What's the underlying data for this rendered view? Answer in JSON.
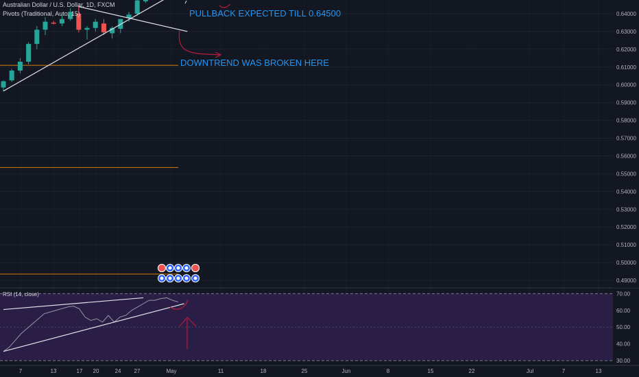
{
  "legend": {
    "symbol": "Australian Dollar / U.S. Dollar, 1D, FXCM",
    "indicator": "Pivots (Traditional, Auto, 15)"
  },
  "rsi_legend": "RSI (14, close)",
  "annotations": {
    "pullback": "PULLBACK EXPECTED TILL 0.64500",
    "downtrend": "DOWNTREND WAS BROKEN HERE"
  },
  "colors": {
    "background": "#131722",
    "up": "#26a69a",
    "down": "#ef5350",
    "annotation": "#2196f3",
    "pivot_line": "#ff9800",
    "rsi_band": "#2a1e47",
    "axis_text": "#b2b5be",
    "arrow": "#b71c3c"
  },
  "chart_data": [
    {
      "type": "candlestick",
      "title": "",
      "price_axis": {
        "ticks": [
          "0.64000",
          "0.63000",
          "0.62000",
          "0.61000",
          "0.60000",
          "0.59000",
          "0.58000",
          "0.57000",
          "0.56000",
          "0.55000",
          "0.54000",
          "0.53000",
          "0.52000",
          "0.51000",
          "0.50000",
          "0.49000"
        ]
      },
      "time_axis": {
        "ticks": [
          "7",
          "13",
          "17",
          "20",
          "24",
          "27",
          "May",
          "11",
          "18",
          "25",
          "Jun",
          "8",
          "15",
          "22",
          "Jul",
          "7",
          "13"
        ]
      },
      "candles": [
        {
          "open": 0.5985,
          "high": 0.6025,
          "low": 0.5965,
          "close": 0.602
        },
        {
          "open": 0.6025,
          "high": 0.609,
          "low": 0.6015,
          "close": 0.608
        },
        {
          "open": 0.608,
          "high": 0.615,
          "low": 0.6065,
          "close": 0.613
        },
        {
          "open": 0.613,
          "high": 0.624,
          "low": 0.6115,
          "close": 0.623
        },
        {
          "open": 0.623,
          "high": 0.633,
          "low": 0.62,
          "close": 0.631
        },
        {
          "open": 0.631,
          "high": 0.638,
          "low": 0.628,
          "close": 0.6355
        },
        {
          "open": 0.635,
          "high": 0.636,
          "low": 0.634,
          "close": 0.6345
        },
        {
          "open": 0.6345,
          "high": 0.64,
          "low": 0.633,
          "close": 0.637
        },
        {
          "open": 0.637,
          "high": 0.643,
          "low": 0.636,
          "close": 0.641
        },
        {
          "open": 0.64,
          "high": 0.6445,
          "low": 0.6295,
          "close": 0.631
        },
        {
          "open": 0.631,
          "high": 0.633,
          "low": 0.6255,
          "close": 0.632
        },
        {
          "open": 0.632,
          "high": 0.637,
          "low": 0.63,
          "close": 0.6355
        },
        {
          "open": 0.6345,
          "high": 0.637,
          "low": 0.628,
          "close": 0.6295
        },
        {
          "open": 0.629,
          "high": 0.633,
          "low": 0.626,
          "close": 0.632
        },
        {
          "open": 0.6315,
          "high": 0.637,
          "low": 0.629,
          "close": 0.637
        },
        {
          "open": 0.6375,
          "high": 0.641,
          "low": 0.6355,
          "close": 0.6395
        },
        {
          "open": 0.64,
          "high": 0.649,
          "low": 0.639,
          "close": 0.6475
        },
        {
          "open": 0.647,
          "high": 0.65,
          "low": 0.646,
          "close": 0.649
        }
      ],
      "pivot_levels": [
        0.611,
        0.5535,
        0.4935
      ],
      "trendlines": [
        {
          "from": {
            "bar": 0,
            "price": 0.5965
          },
          "to": {
            "bar": 22,
            "price": 0.6555
          }
        },
        {
          "from": {
            "bar": 9,
            "price": 0.644
          },
          "to": {
            "bar": 22,
            "price": 0.63
          }
        }
      ]
    },
    {
      "type": "line",
      "title": "",
      "series": [
        {
          "values": [
            35.5,
            38,
            42,
            46,
            49,
            52,
            55,
            58,
            59,
            60,
            61,
            62,
            62.5,
            61,
            56,
            54,
            55,
            53,
            57,
            53,
            56,
            57,
            60,
            62,
            64,
            66,
            66,
            67,
            67.5,
            66,
            65
          ]
        }
      ],
      "ylim": [
        28,
        73
      ],
      "band": [
        30,
        70
      ],
      "y_ticks": [
        "70.00",
        "60.00",
        "50.00",
        "40.00",
        "30.00"
      ],
      "trendlines": [
        {
          "from": {
            "index": 0,
            "value": 60.5
          },
          "to": {
            "index": 24,
            "value": 67.5
          }
        },
        {
          "from": {
            "index": 0,
            "value": 35.5
          },
          "to": {
            "index": 31,
            "value": 64
          }
        }
      ]
    }
  ]
}
